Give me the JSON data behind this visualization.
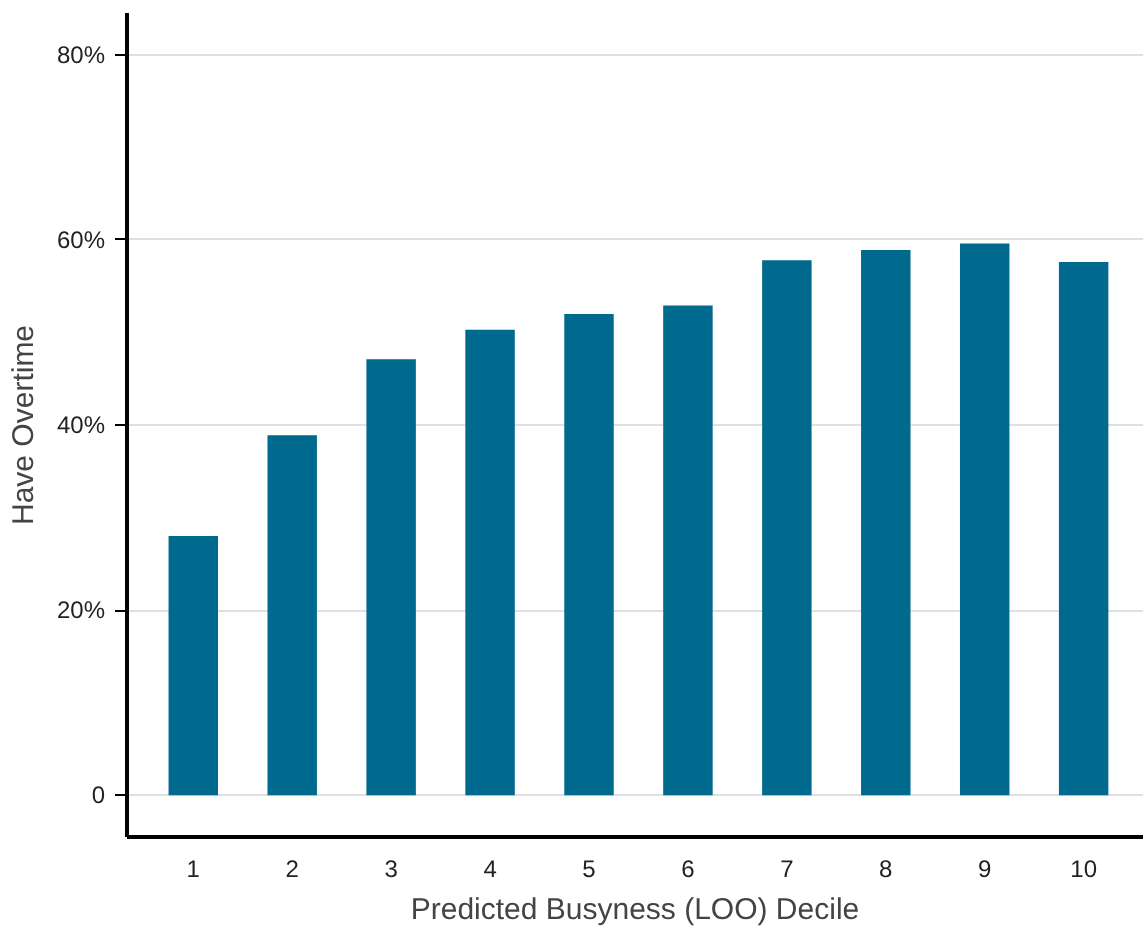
{
  "chart_data": {
    "type": "bar",
    "xlabel": "Predicted Busyness (LOO) Decile",
    "ylabel": "Have Overtime",
    "categories": [
      "1",
      "2",
      "3",
      "4",
      "5",
      "6",
      "7",
      "8",
      "9",
      "10"
    ],
    "values": [
      28,
      38.9,
      47.1,
      50.3,
      52,
      52.9,
      57.8,
      58.9,
      59.6,
      57.6
    ],
    "color": "#006a8e",
    "ylim": [
      -4.5,
      84.5
    ],
    "yticks": [
      {
        "value": 0,
        "label": "0"
      },
      {
        "value": 20,
        "label": "20%"
      },
      {
        "value": 40,
        "label": "40%"
      },
      {
        "value": 60,
        "label": "60%"
      },
      {
        "value": 80,
        "label": "80%"
      }
    ],
    "grid": "y"
  }
}
